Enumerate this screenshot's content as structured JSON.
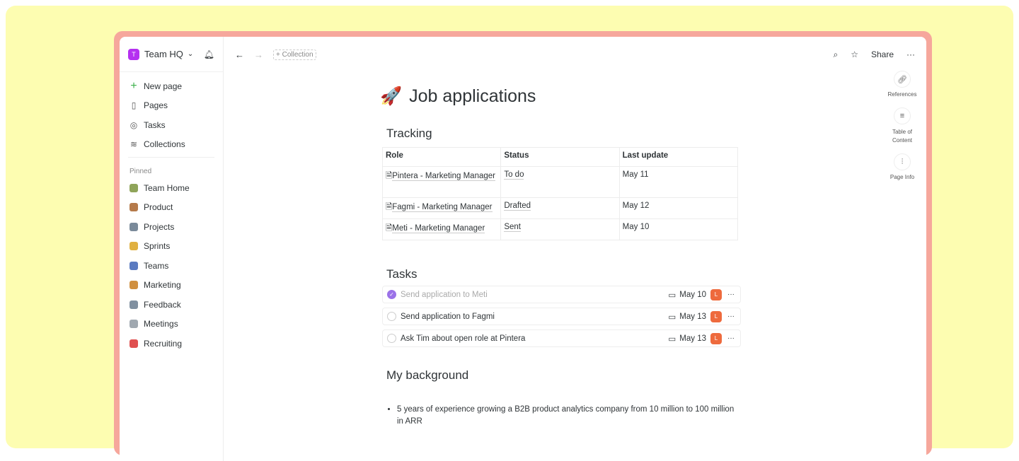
{
  "workspace": {
    "initial": "T",
    "name": "Team HQ"
  },
  "nav": [
    {
      "label": "New page",
      "icon": "plus-icon"
    },
    {
      "label": "Pages",
      "icon": "page-icon"
    },
    {
      "label": "Tasks",
      "icon": "check-circle-icon"
    },
    {
      "label": "Collections",
      "icon": "layers-icon"
    }
  ],
  "pinned_label": "Pinned",
  "pinned": [
    {
      "label": "Team Home",
      "color": "#8fa45a"
    },
    {
      "label": "Product",
      "color": "#b57a4a"
    },
    {
      "label": "Projects",
      "color": "#7a8a9a"
    },
    {
      "label": "Sprints",
      "color": "#e0b040"
    },
    {
      "label": "Teams",
      "color": "#5a7ac0"
    },
    {
      "label": "Marketing",
      "color": "#d09040"
    },
    {
      "label": "Feedback",
      "color": "#8090a0"
    },
    {
      "label": "Meetings",
      "color": "#a0a8b0"
    },
    {
      "label": "Recruiting",
      "color": "#e05050"
    }
  ],
  "toolbar": {
    "collection": "+ Collection",
    "share": "Share"
  },
  "rail": [
    {
      "label": "References",
      "icon": "link-icon"
    },
    {
      "label": "Table of Content",
      "icon": "list-icon"
    },
    {
      "label": "Page Info",
      "icon": "sliders-icon"
    }
  ],
  "page": {
    "emoji": "🚀",
    "title": "Job applications"
  },
  "tracking": {
    "heading": "Tracking",
    "headers": [
      "Role",
      "Status",
      "Last update"
    ],
    "rows": [
      [
        "Pintera - Marketing Manager",
        "To do",
        "May 11"
      ],
      [
        "Fagmi - Marketing Manager",
        "Drafted",
        "May 12"
      ],
      [
        "Meti - Marketing Manager",
        "Sent",
        "May 10"
      ]
    ]
  },
  "tasks": {
    "heading": "Tasks",
    "items": [
      {
        "text": "Send application to Meti",
        "done": true,
        "date": "May 10",
        "assignee": "L"
      },
      {
        "text": "Send application to Fagmi",
        "done": false,
        "date": "May 13",
        "assignee": "L"
      },
      {
        "text": "Ask Tim about open role at Pintera",
        "done": false,
        "date": "May 13",
        "assignee": "L"
      }
    ]
  },
  "background": {
    "heading": "My background",
    "bullets": [
      "5 years of experience growing a B2B product analytics company from 10 million to 100 million in ARR"
    ]
  }
}
